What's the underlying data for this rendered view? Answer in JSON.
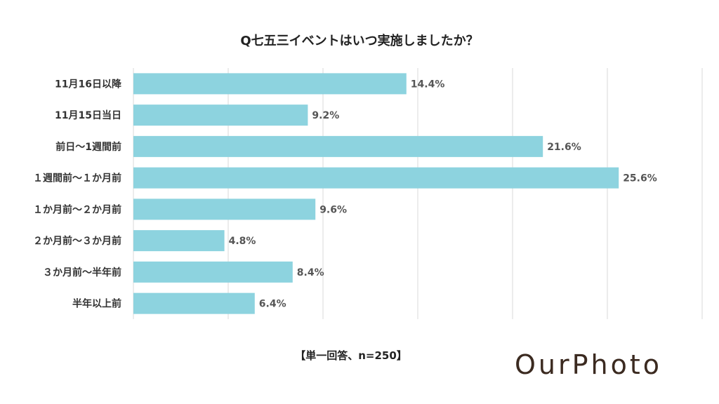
{
  "footnote": "【単一回答、n=250】",
  "logo_text": "OurPhoto",
  "colors": {
    "bar": "#8dd3df",
    "grid": "#d9d9d9",
    "logo": "#3b2a20"
  },
  "chart_data": {
    "type": "bar",
    "orientation": "horizontal",
    "title": "Q七五三イベントはいつ実施しましたか？",
    "categories": [
      "11月16日以降",
      "11月15日当日",
      "前日～1週間前",
      "１週間前～１か月前",
      "１か月前～２か月前",
      "２か月前～３か月前",
      "３か月前～半年前",
      "半年以上前"
    ],
    "values": [
      14.4,
      9.2,
      21.6,
      25.6,
      9.6,
      4.8,
      8.4,
      6.4
    ],
    "value_labels": [
      "14.4%",
      "9.2%",
      "21.6%",
      "25.6%",
      "9.6%",
      "4.8%",
      "8.4%",
      "6.4%"
    ],
    "xlim": [
      0,
      30
    ],
    "grid": true,
    "legend": false
  }
}
